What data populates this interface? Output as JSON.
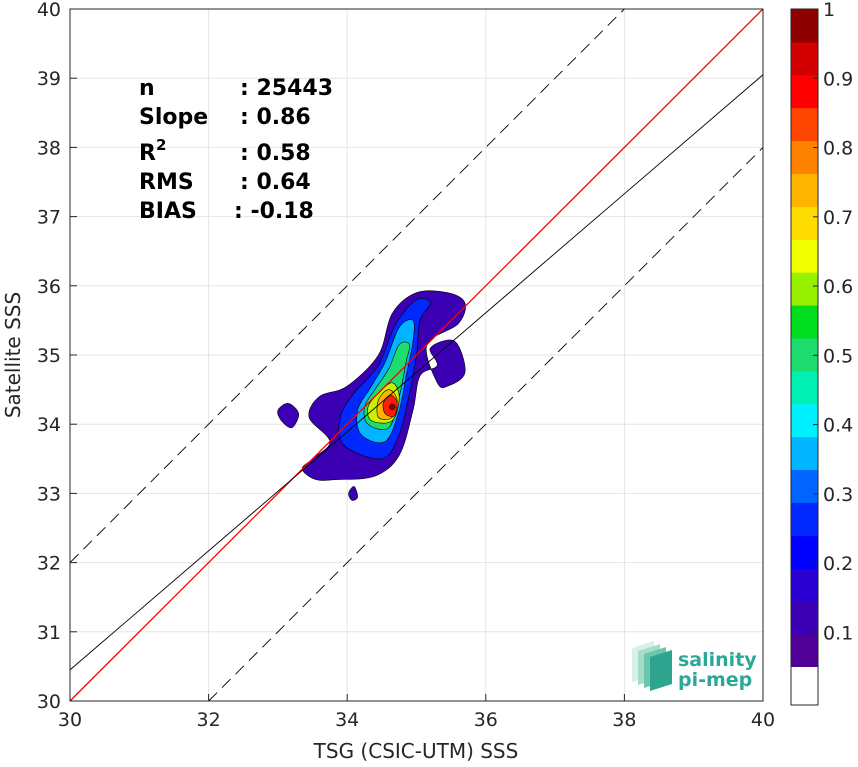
{
  "chart_data": {
    "type": "heatmap",
    "subtype": "filled contour density scatter",
    "xlabel": "TSG (CSIC-UTM) SSS",
    "ylabel": "Satellite SSS",
    "xlim": [
      30,
      40
    ],
    "ylim": [
      30,
      40
    ],
    "xticks": [
      30,
      32,
      34,
      36,
      38,
      40
    ],
    "yticks": [
      30,
      31,
      32,
      33,
      34,
      35,
      36,
      37,
      38,
      39,
      40
    ],
    "grid": true,
    "stats": [
      {
        "label": "n",
        "value": ": 25443"
      },
      {
        "label": "Slope",
        "value": ": 0.86"
      },
      {
        "label": "R",
        "sup": "2",
        "value": ": 0.58"
      },
      {
        "label": "RMS",
        "value": ": 0.64"
      },
      {
        "label": "BIAS",
        "value": ": -0.18"
      }
    ],
    "lines": [
      {
        "name": "one-to-one",
        "color": "#ff0000",
        "slope": 1,
        "intercept": 0,
        "dash": false
      },
      {
        "name": "regression",
        "color": "#000000",
        "slope": 0.86,
        "intercept": 4.65,
        "dash": false
      },
      {
        "name": "upper-bound",
        "color": "#000000",
        "slope": 1,
        "intercept": 2,
        "dash": true
      },
      {
        "name": "lower-bound",
        "color": "#000000",
        "slope": 1,
        "intercept": -2,
        "dash": true
      }
    ],
    "density_peak": {
      "x": 34.65,
      "y": 34.25,
      "value": 1.0
    },
    "contour_levels": [
      {
        "level": 0.05,
        "color": "#3c00b4",
        "points": [
          [
            33.55,
            33.2
          ],
          [
            33.85,
            33.2
          ],
          [
            34.4,
            33.25
          ],
          [
            34.75,
            33.55
          ],
          [
            34.95,
            34.2
          ],
          [
            35.05,
            34.7
          ],
          [
            35.3,
            34.85
          ],
          [
            35.2,
            35.1
          ],
          [
            35.55,
            35.2
          ],
          [
            35.7,
            34.75
          ],
          [
            35.45,
            34.55
          ],
          [
            35.3,
            34.6
          ],
          [
            35.15,
            35.15
          ],
          [
            35.6,
            35.45
          ],
          [
            35.7,
            35.75
          ],
          [
            35.45,
            35.9
          ],
          [
            35.0,
            35.9
          ],
          [
            34.65,
            35.6
          ],
          [
            34.45,
            35.0
          ],
          [
            34.0,
            34.55
          ],
          [
            33.6,
            34.4
          ],
          [
            33.45,
            34.1
          ],
          [
            33.75,
            33.75
          ],
          [
            33.5,
            33.5
          ],
          [
            33.35,
            33.35
          ]
        ]
      },
      {
        "level": 0.15,
        "color": "#0028ff",
        "points": [
          [
            33.95,
            33.7
          ],
          [
            34.5,
            33.5
          ],
          [
            34.75,
            33.85
          ],
          [
            34.9,
            34.45
          ],
          [
            35.0,
            35.0
          ],
          [
            35.05,
            35.5
          ],
          [
            35.2,
            35.75
          ],
          [
            35.0,
            35.8
          ],
          [
            34.7,
            35.45
          ],
          [
            34.45,
            34.85
          ],
          [
            34.1,
            34.45
          ],
          [
            33.9,
            34.1
          ]
        ]
      },
      {
        "level": 0.3,
        "color": "#00b4ff",
        "points": [
          [
            34.2,
            33.85
          ],
          [
            34.55,
            33.75
          ],
          [
            34.75,
            34.2
          ],
          [
            34.85,
            34.7
          ],
          [
            34.95,
            35.2
          ],
          [
            34.95,
            35.5
          ],
          [
            34.75,
            35.4
          ],
          [
            34.55,
            34.9
          ],
          [
            34.35,
            34.55
          ],
          [
            34.15,
            34.2
          ]
        ]
      },
      {
        "level": 0.45,
        "color": "#1edc6e",
        "points": [
          [
            34.3,
            34.0
          ],
          [
            34.6,
            33.95
          ],
          [
            34.75,
            34.4
          ],
          [
            34.85,
            34.9
          ],
          [
            34.9,
            35.15
          ],
          [
            34.75,
            35.15
          ],
          [
            34.6,
            34.8
          ],
          [
            34.4,
            34.5
          ],
          [
            34.25,
            34.25
          ]
        ]
      },
      {
        "level": 0.6,
        "color": "#c8f000",
        "points": [
          [
            34.35,
            34.05
          ],
          [
            34.65,
            34.05
          ],
          [
            34.75,
            34.4
          ],
          [
            34.65,
            34.6
          ],
          [
            34.45,
            34.45
          ],
          [
            34.3,
            34.25
          ]
        ]
      },
      {
        "level": 0.75,
        "color": "#ffb400",
        "points": [
          [
            34.45,
            34.1
          ],
          [
            34.65,
            34.1
          ],
          [
            34.72,
            34.35
          ],
          [
            34.6,
            34.5
          ],
          [
            34.45,
            34.35
          ]
        ]
      },
      {
        "level": 0.9,
        "color": "#ff1e00",
        "points": [
          [
            34.55,
            34.15
          ],
          [
            34.68,
            34.12
          ],
          [
            34.72,
            34.32
          ],
          [
            34.62,
            34.42
          ],
          [
            34.52,
            34.3
          ]
        ]
      }
    ],
    "extra_blobs": [
      {
        "color": "#3c00b4",
        "points": [
          [
            33.0,
            34.2
          ],
          [
            33.15,
            34.3
          ],
          [
            33.3,
            34.15
          ],
          [
            33.2,
            33.95
          ],
          [
            33.05,
            34.05
          ]
        ]
      },
      {
        "color": "#3c00b4",
        "points": [
          [
            34.02,
            33.0
          ],
          [
            34.1,
            33.1
          ],
          [
            34.15,
            32.95
          ],
          [
            34.07,
            32.9
          ]
        ]
      }
    ],
    "colorbar": {
      "min": 0.05,
      "max": 1.0,
      "ticks": [
        0.1,
        0.2,
        0.3,
        0.4,
        0.5,
        0.6,
        0.7,
        0.8,
        0.9,
        1
      ],
      "tick_labels": [
        "0.1",
        "0.2",
        "0.3",
        "0.4",
        "0.5",
        "0.6",
        "0.7",
        "0.8",
        "0.9",
        "1"
      ],
      "colors": [
        "#500096",
        "#3c00b4",
        "#2800d2",
        "#0000ff",
        "#0028ff",
        "#0064ff",
        "#00b4ff",
        "#00f0ff",
        "#00f0b4",
        "#1edc6e",
        "#00dc1e",
        "#96f000",
        "#f0ff00",
        "#ffdc00",
        "#ffb400",
        "#ff8200",
        "#ff4600",
        "#ff0000",
        "#d20000",
        "#8c0000"
      ]
    },
    "logo": {
      "line1": "salinity",
      "line2": "pi-mep",
      "color": "#2ca898"
    }
  }
}
